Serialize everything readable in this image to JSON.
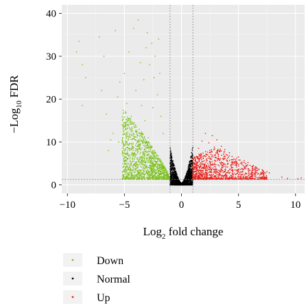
{
  "chart_data": {
    "type": "scatter",
    "title": "",
    "xlabel": {
      "prefix": "Log",
      "sub": "2",
      "suffix": " fold change"
    },
    "ylabel": {
      "prefix": "−Log",
      "sub": "10",
      "suffix": " FDR"
    },
    "xlim": [
      -10.5,
      10.8
    ],
    "ylim": [
      -2,
      42
    ],
    "x_ticks": [
      -10,
      -5,
      0,
      5,
      10
    ],
    "x_tick_labels": [
      "−10",
      "−5",
      "0",
      "5",
      "10"
    ],
    "y_ticks": [
      0,
      10,
      20,
      30,
      40
    ],
    "y_tick_labels": [
      "0",
      "10",
      "20",
      "30",
      "40"
    ],
    "fc_cutoffs": [
      -1,
      1
    ],
    "fdr_cutoff": 1.3,
    "grid": true,
    "legend_position": "bottom",
    "series": [
      {
        "name": "Down",
        "color": "#7ec320",
        "points": [
          [
            -9.2,
            31
          ],
          [
            -9.0,
            33.5
          ],
          [
            -8.7,
            28
          ],
          [
            -8.7,
            18.5
          ],
          [
            -8.4,
            25
          ],
          [
            -7.2,
            34.5
          ],
          [
            -6.8,
            30
          ],
          [
            -7.0,
            22
          ],
          [
            -6.6,
            16.5
          ],
          [
            -6.2,
            10.5
          ],
          [
            -6.0,
            12
          ],
          [
            -5.8,
            36
          ],
          [
            -5.6,
            20.5
          ],
          [
            -5.4,
            24
          ],
          [
            -5.2,
            14
          ],
          [
            -5.0,
            26
          ],
          [
            -4.8,
            19
          ],
          [
            -4.6,
            31
          ],
          [
            -4.4,
            16
          ],
          [
            -4.2,
            36.5
          ],
          [
            -4.0,
            22
          ],
          [
            -3.8,
            38.5
          ],
          [
            -3.6,
            28.5
          ],
          [
            -3.5,
            18.5
          ],
          [
            -3.3,
            24.5
          ],
          [
            -3.1,
            32
          ],
          [
            -3.0,
            35.5
          ],
          [
            -2.8,
            28
          ],
          [
            -2.6,
            33
          ],
          [
            -2.4,
            25
          ],
          [
            -2.3,
            30
          ],
          [
            -2.1,
            21
          ],
          [
            -2.0,
            34
          ],
          [
            -1.9,
            26
          ],
          [
            -1.8,
            16
          ],
          [
            -2.5,
            18
          ],
          [
            -3.2,
            15
          ],
          [
            -4.5,
            13
          ],
          [
            -5.5,
            10
          ],
          [
            -6.4,
            8
          ],
          [
            -3.7,
            12
          ],
          [
            -2.9,
            11
          ],
          [
            -1.6,
            12
          ]
        ],
        "dense_region": {
          "x_range": [
            -5.2,
            -1.0
          ],
          "y_range": [
            1.3,
            18
          ],
          "n": 1300
        }
      },
      {
        "name": "Normal",
        "color": "#000000",
        "dense_region": {
          "x_range": [
            -1.0,
            1.0
          ],
          "y_range": [
            0,
            9
          ],
          "n": 1800
        }
      },
      {
        "name": "Up",
        "color": "#e8231d",
        "points": [
          [
            7.7,
            2.8
          ],
          [
            7.2,
            2.2
          ],
          [
            6.8,
            3.6
          ],
          [
            6.3,
            4.5
          ],
          [
            5.9,
            3.0
          ],
          [
            5.5,
            5.2
          ],
          [
            5.0,
            6.5
          ],
          [
            4.7,
            4.6
          ],
          [
            4.2,
            7.5
          ],
          [
            3.8,
            8.2
          ],
          [
            3.5,
            9.0
          ],
          [
            3.1,
            10.5
          ],
          [
            2.7,
            11.5
          ],
          [
            2.4,
            9.8
          ],
          [
            2.1,
            12.0
          ],
          [
            1.8,
            10.2
          ],
          [
            1.5,
            8.5
          ],
          [
            8.8,
            1.8
          ],
          [
            9.3,
            1.5
          ],
          [
            10.2,
            1.4
          ],
          [
            10.5,
            1.6
          ]
        ],
        "dense_region": {
          "x_range": [
            1.0,
            7.5
          ],
          "y_range": [
            1.3,
            9
          ],
          "n": 1100
        }
      }
    ]
  }
}
